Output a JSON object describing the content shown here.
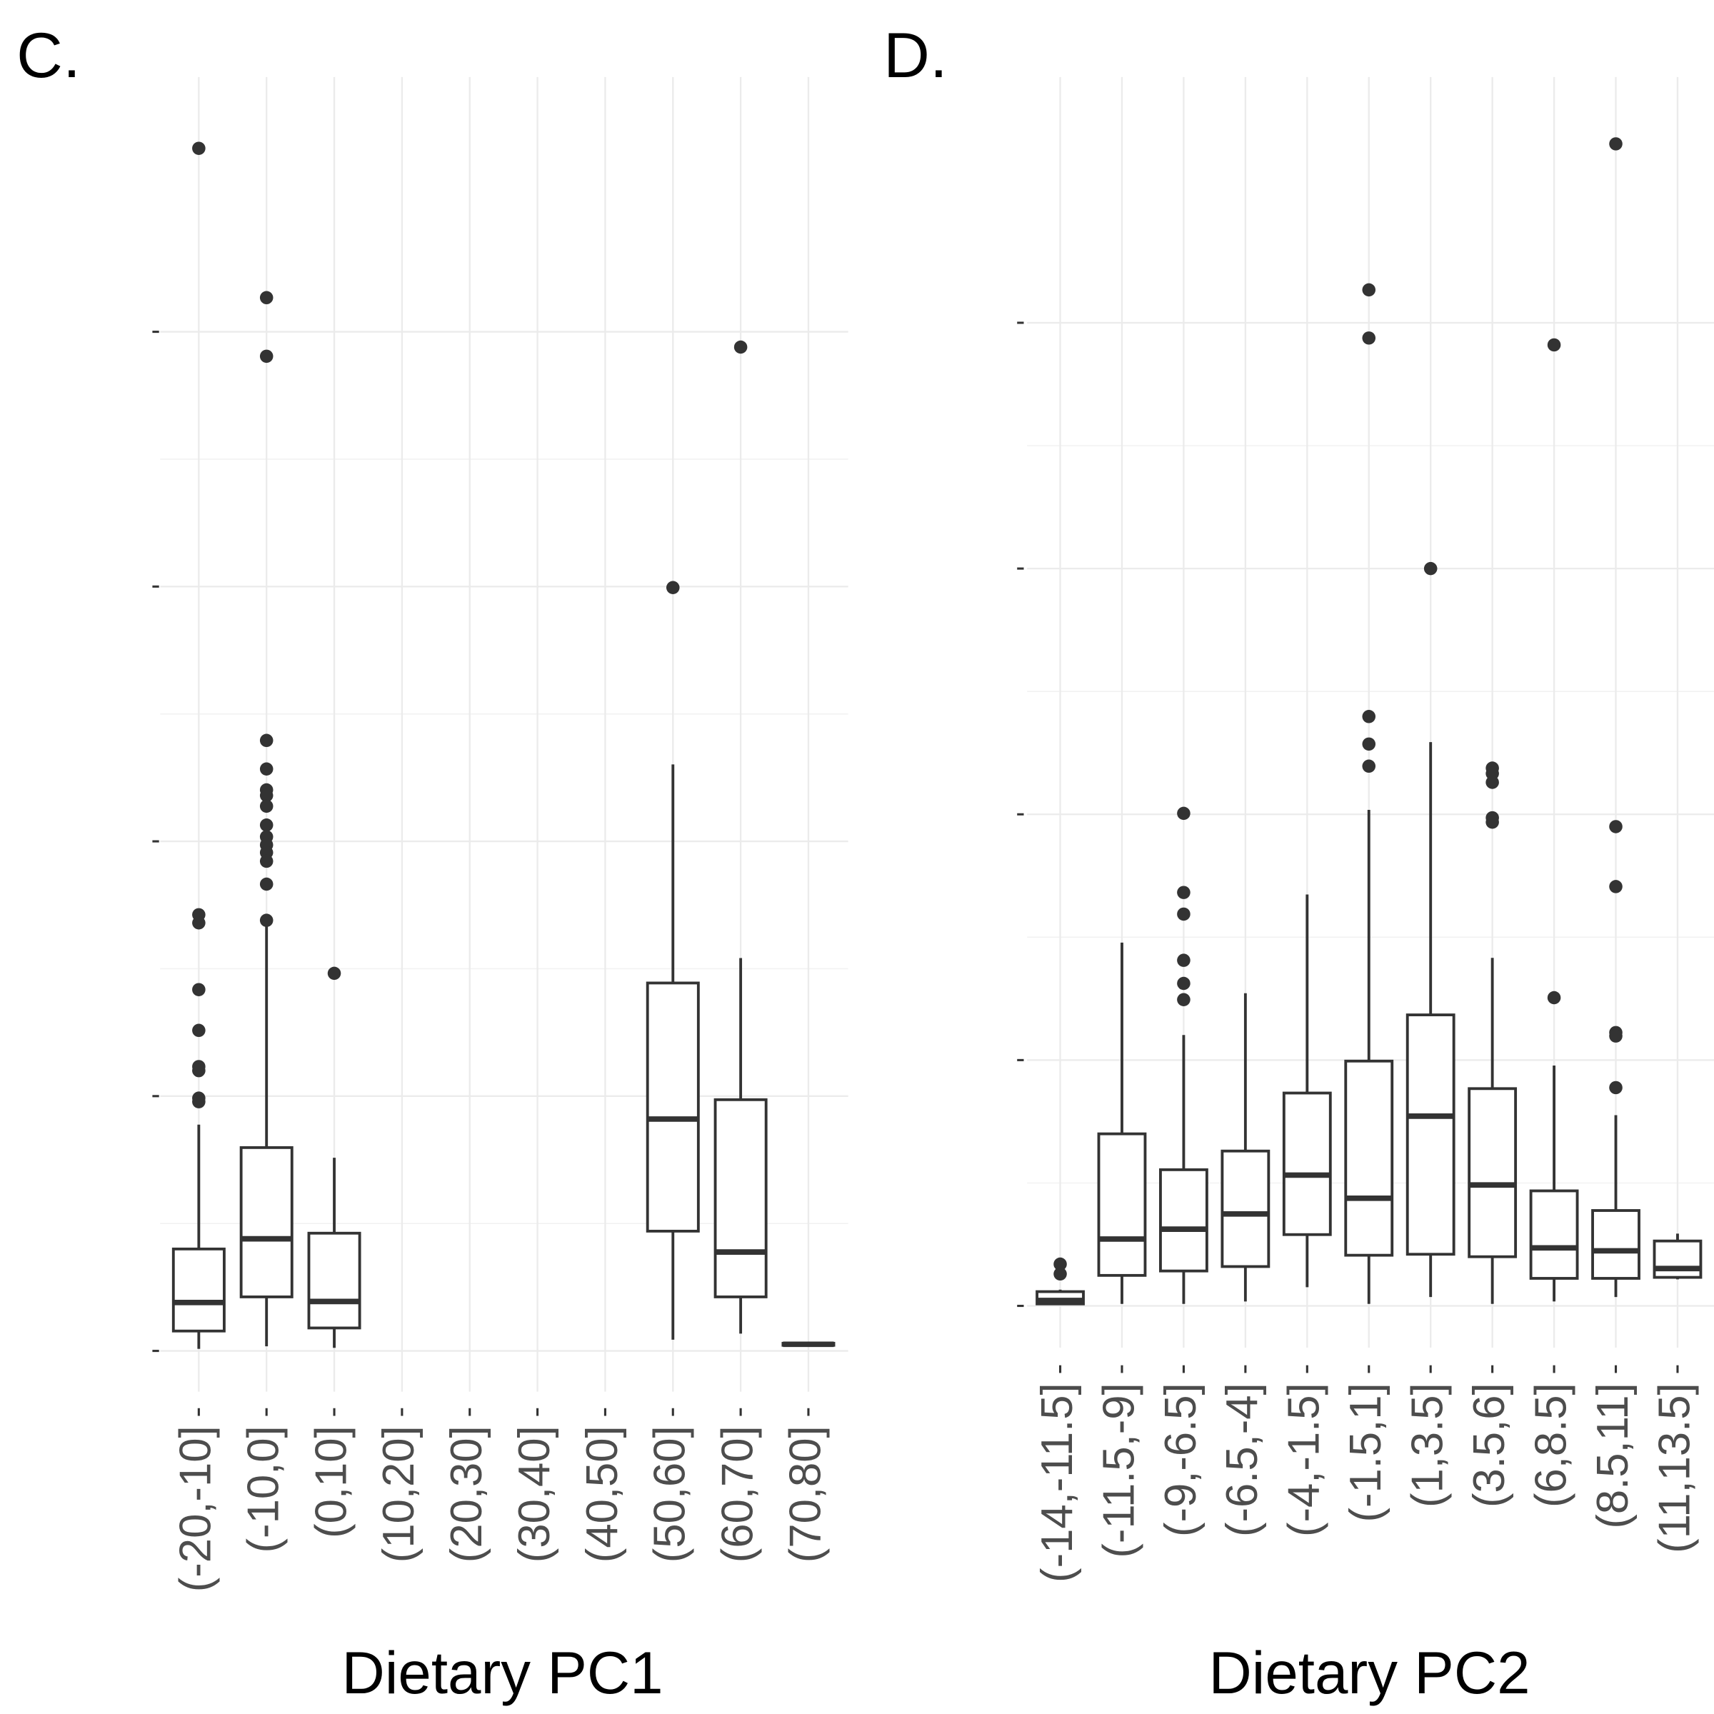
{
  "chart_data": [
    {
      "type": "box",
      "label": "C.",
      "xlabel": "Dietary PC1",
      "categories": [
        "(-20,-10]",
        "(-10,0]",
        "(0,10]",
        "(10,20]",
        "(20,30]",
        "(30,40]",
        "(40,50]",
        "(50,60]",
        "(60,70]",
        "(70,80]"
      ],
      "boxes": [
        {
          "low": 0.04,
          "q1": 0.39,
          "median": 0.95,
          "q3": 2.0,
          "high": 4.44,
          "outliers": [
            23.6,
            8.56,
            8.4,
            7.09,
            6.29,
            5.58,
            5.5,
            4.96,
            4.89
          ]
        },
        {
          "low": 0.09,
          "q1": 1.06,
          "median": 2.2,
          "q3": 3.99,
          "high": 8.43,
          "outliers": [
            20.67,
            19.52,
            11.98,
            11.42,
            11.01,
            10.9,
            10.69,
            10.32,
            10.09,
            9.93,
            9.78,
            9.61,
            9.16,
            8.45
          ]
        },
        {
          "low": 0.06,
          "q1": 0.45,
          "median": 0.97,
          "q3": 2.31,
          "high": 3.79,
          "outliers": [
            7.41
          ]
        },
        null,
        null,
        null,
        null,
        {
          "low": 0.22,
          "q1": 2.35,
          "median": 4.55,
          "q3": 7.22,
          "high": 11.51,
          "outliers": [
            14.98
          ]
        },
        {
          "low": 0.34,
          "q1": 1.06,
          "median": 1.94,
          "q3": 4.93,
          "high": 7.71,
          "outliers": [
            19.7
          ]
        },
        {
          "low": 0.11,
          "q1": 0.11,
          "median": 0.13,
          "q3": 0.15,
          "high": 0.15,
          "outliers": []
        }
      ],
      "ylim": [
        -0.8,
        25
      ],
      "yticks": [
        0,
        5,
        10,
        15,
        20
      ],
      "grid": true,
      "color": "#333333"
    },
    {
      "type": "box",
      "label": "D.",
      "xlabel": "Dietary PC2",
      "categories": [
        "(-14,-11.5]",
        "(-11.5,-9]",
        "(-9,-6.5]",
        "(-6.5,-4]",
        "(-4,-1.5]",
        "(-1.5,1]",
        "(1,3.5]",
        "(3.5,6]",
        "(6,8.5]",
        "(8.5,11]",
        "(11,13.5]"
      ],
      "boxes": [
        {
          "low": 0.04,
          "q1": 0.04,
          "median": 0.11,
          "q3": 0.29,
          "high": 0.33,
          "outliers": [
            0.85,
            0.65
          ]
        },
        {
          "low": 0.04,
          "q1": 0.62,
          "median": 1.36,
          "q3": 3.5,
          "high": 7.39,
          "outliers": []
        },
        {
          "low": 0.04,
          "q1": 0.71,
          "median": 1.56,
          "q3": 2.77,
          "high": 5.51,
          "outliers": [
            10.02,
            8.41,
            7.97,
            7.03,
            6.56,
            6.23
          ]
        },
        {
          "low": 0.09,
          "q1": 0.8,
          "median": 1.87,
          "q3": 3.15,
          "high": 6.36,
          "outliers": []
        },
        {
          "low": 0.38,
          "q1": 1.45,
          "median": 2.66,
          "q3": 4.33,
          "high": 8.37,
          "outliers": []
        },
        {
          "low": 0.04,
          "q1": 1.03,
          "median": 2.19,
          "q3": 4.98,
          "high": 10.09,
          "outliers": [
            20.67,
            19.69,
            11.99,
            11.43,
            10.98
          ]
        },
        {
          "low": 0.18,
          "q1": 1.05,
          "median": 3.86,
          "q3": 5.92,
          "high": 11.47,
          "outliers": [
            15.0
          ]
        },
        {
          "low": 0.04,
          "q1": 1.0,
          "median": 2.46,
          "q3": 4.42,
          "high": 7.08,
          "outliers": [
            10.94,
            10.83,
            10.65,
            9.93,
            9.84
          ]
        },
        {
          "low": 0.09,
          "q1": 0.56,
          "median": 1.18,
          "q3": 2.34,
          "high": 4.89,
          "outliers": [
            19.55,
            6.27
          ]
        },
        {
          "low": 0.18,
          "q1": 0.56,
          "median": 1.12,
          "q3": 1.94,
          "high": 3.88,
          "outliers": [
            23.64,
            9.75,
            8.53,
            5.56,
            5.49,
            4.44
          ]
        },
        {
          "low": 0.54,
          "q1": 0.58,
          "median": 0.76,
          "q3": 1.32,
          "high": 1.47,
          "outliers": []
        }
      ],
      "ylim": [
        -0.85,
        25
      ],
      "yticks": [
        0,
        5,
        10,
        15,
        20
      ],
      "grid": true,
      "color": "#333333"
    }
  ]
}
